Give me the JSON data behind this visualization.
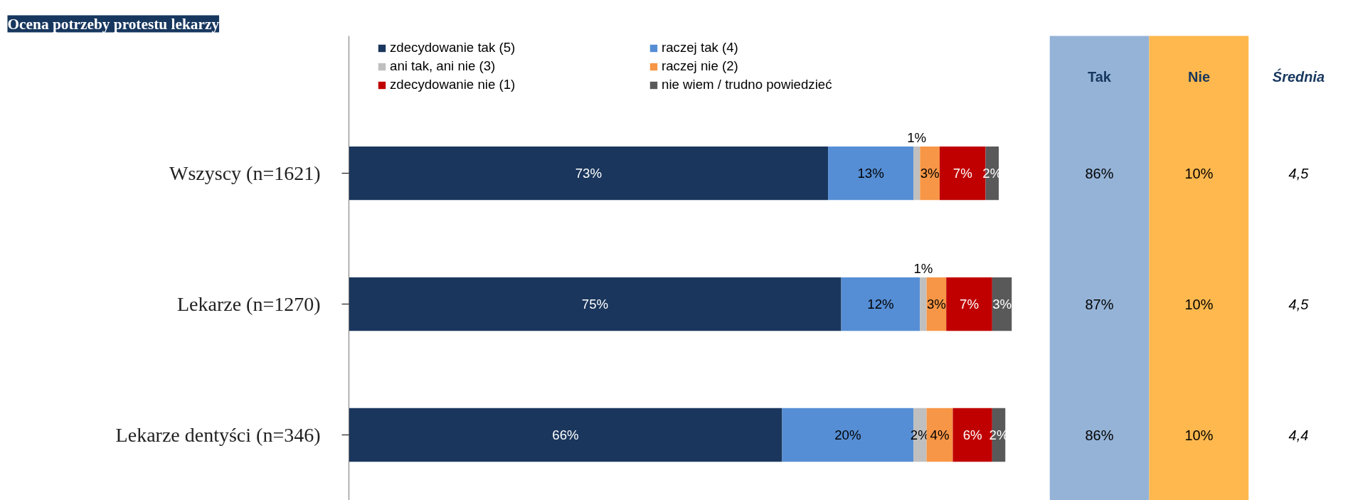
{
  "chart_data": [
    {
      "type": "bar",
      "title": "Ocena potrzeby protestu lekarzy",
      "orientation": "horizontal",
      "stacked": true,
      "legend": "top",
      "grid": false,
      "categories": [
        "Wszyscy (n=1621)",
        "Lekarze (n=1270)",
        "Lekarze dentyści (n=346)"
      ],
      "series": [
        {
          "name": "zdecydowanie tak (5)",
          "color": "#1a365d",
          "values": [
            73,
            75,
            66
          ],
          "value_labels": [
            "73%",
            "75%",
            "66%"
          ]
        },
        {
          "name": "raczej tak (4)",
          "color": "#558ed5",
          "values": [
            13,
            12,
            20
          ],
          "value_labels": [
            "13%",
            "12%",
            "20%"
          ]
        },
        {
          "name": "ani tak, ani nie (3)",
          "color": "#bfbfbf",
          "values": [
            1,
            1,
            2
          ],
          "value_labels": [
            "1%",
            "1%",
            "2%"
          ]
        },
        {
          "name": "raczej nie (2)",
          "color": "#f79646",
          "values": [
            3,
            3,
            4
          ],
          "value_labels": [
            "3%",
            "3%",
            "4%"
          ]
        },
        {
          "name": "zdecydowanie nie (1)",
          "color": "#c00000",
          "values": [
            7,
            7,
            6
          ],
          "value_labels": [
            "7%",
            "7%",
            "6%"
          ]
        },
        {
          "name": "nie wiem / trudno powiedzieć",
          "color": "#595959",
          "values": [
            2,
            3,
            2
          ],
          "value_labels": [
            "2%",
            "3%",
            "2%"
          ]
        }
      ]
    },
    {
      "type": "other",
      "categories": [
        "Tak",
        "Nie",
        "Średnia"
      ],
      "colors": [
        "#95b3d7",
        "#ffb84d",
        "#ffffff"
      ],
      "cell_labels": [
        [
          "86%",
          "10%",
          "4,5"
        ],
        [
          "87%",
          "10%",
          "4,5"
        ],
        [
          "86%",
          "10%",
          "4,4"
        ]
      ]
    }
  ]
}
